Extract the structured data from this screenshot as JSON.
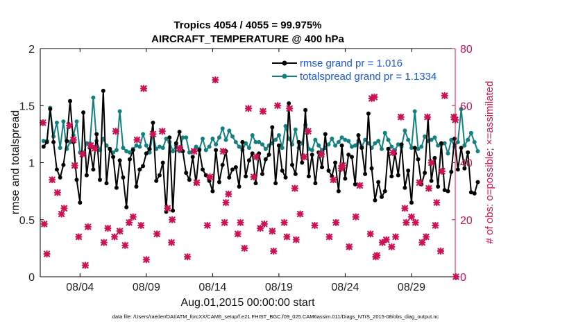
{
  "chart_data": {
    "type": "line",
    "title": "Tropics 4054 / 4055 = 99.975%",
    "subtitle": "AIRCRAFT_TEMPERATURE @ 400 hPa",
    "xlabel": "Aug.01,2015 00:00:00 start",
    "ylabel": "rmse and totalspread",
    "y2label": "# of obs: o=possible; ×=assimilated",
    "footer": "data file: /Users/raeder/DAI/ATM_forcXX/CAM6_setup/f.e21.FHIST_BGC.f09_025.CAM6assim.011/Diags_NTrS_2015-08/obs_diag_output.nc",
    "xlim": [
      1,
      32.3
    ],
    "ylim": [
      0,
      2
    ],
    "y2lim": [
      0,
      80
    ],
    "xticks": [
      4,
      9,
      14,
      19,
      24,
      29
    ],
    "xtick_labels": [
      "08/04",
      "08/09",
      "08/14",
      "08/19",
      "08/24",
      "08/29"
    ],
    "yticks": [
      0,
      0.5,
      1,
      1.5,
      2
    ],
    "ytick_labels": [
      "0",
      "0.5",
      "1",
      "1.5",
      "2"
    ],
    "y2ticks": [
      0,
      20,
      40,
      60,
      80
    ],
    "y2tick_labels": [
      "0",
      "20",
      "40",
      "60",
      "80"
    ],
    "x_start": 1.25,
    "x_step": 0.25,
    "legend_position": "top-right",
    "series": [
      {
        "name": "rmse grand pr = 1.016",
        "axis": "left",
        "color": "#000000",
        "marker": "dot",
        "values": [
          1.14,
          1.18,
          1.47,
          1.18,
          0.94,
          0.87,
          0.98,
          1.19,
          1.54,
          1.18,
          0.85,
          0.65,
          1.44,
          0.89,
          1.13,
          0.94,
          1.25,
          0.85,
          1.63,
          0.82,
          1.12,
          1.05,
          0.78,
          1.02,
          0.87,
          0.61,
          1.03,
          1.11,
          0.79,
          0.94,
          0.97,
          1.08,
          1.12,
          1.35,
          0.84,
          0.89,
          1.0,
          0.57,
          1.22,
          0.58,
          1.17,
          1.27,
          1.1,
          0.91,
          0.85,
          1.05,
          0.82,
          1.11,
          0.94,
          0.89,
          0.84,
          0.75,
          1.11,
          0.83,
          0.98,
          1.1,
          0.87,
          0.94,
          0.96,
          0.79,
          1.18,
          0.88,
          1.02,
          1.08,
          0.82,
          1.08,
          0.9,
          1.03,
          1.07,
          1.31,
          0.82,
          1.15,
          0.93,
          0.87,
          1.52,
          0.98,
          0.9,
          1.18,
          1.0,
          1.46,
          0.88,
          1.07,
          0.82,
          1.09,
          0.96,
          1.25,
          0.93,
          0.88,
          1.0,
          0.75,
          1.15,
          0.86,
          1.07,
          1.05,
          0.81,
          1.24,
          1.13,
          0.9,
          1.43,
          0.95,
          0.67,
          0.83,
          0.7,
          0.75,
          1.12,
          0.88,
          1.08,
          0.89,
          1.16,
          0.78,
          0.93,
          0.65,
          1.13,
          1.03,
          0.81,
          0.91,
          1.39,
          0.84,
          1.04,
          0.79,
          1.17,
          0.76,
          0.75,
          0.92,
          1.21,
          0.94,
          1.13,
          0.95,
          1.09,
          0.74,
          0.73,
          0.83
        ]
      },
      {
        "name": "totalspread grand pr = 1.1334",
        "axis": "left",
        "color": "#138080",
        "marker": "dot",
        "values": [
          1.19,
          1.19,
          1.48,
          1.23,
          1.35,
          1.13,
          1.36,
          1.12,
          1.18,
          1.24,
          1.36,
          1.09,
          1.08,
          1.17,
          1.17,
          1.57,
          1.19,
          1.11,
          1.21,
          1.15,
          1.12,
          1.09,
          1.11,
          1.45,
          1.13,
          1.1,
          1.09,
          1.12,
          1.15,
          1.14,
          1.25,
          1.15,
          1.09,
          1.25,
          1.12,
          1.14,
          1.13,
          1.21,
          1.18,
          1.1,
          1.15,
          1.1,
          1.22,
          1.22,
          1.09,
          1.1,
          1.14,
          1.12,
          1.21,
          1.11,
          1.14,
          1.21,
          1.16,
          1.22,
          1.3,
          1.2,
          1.28,
          1.23,
          1.18,
          1.14,
          1.11,
          1.17,
          1.13,
          1.24,
          1.18,
          1.18,
          1.16,
          1.12,
          1.15,
          1.17,
          1.2,
          1.24,
          1.13,
          1.32,
          1.21,
          1.16,
          1.29,
          1.13,
          1.17,
          1.33,
          1.12,
          1.11,
          1.2,
          1.15,
          1.11,
          1.13,
          1.16,
          1.21,
          1.15,
          1.18,
          1.22,
          1.2,
          1.19,
          1.14,
          1.15,
          1.19,
          1.14,
          1.2,
          1.17,
          1.13,
          1.17,
          1.19,
          1.12,
          1.26,
          1.2,
          1.14,
          1.11,
          1.16,
          1.14,
          1.28,
          1.2,
          1.13,
          1.45,
          1.12,
          1.14,
          1.23,
          1.19,
          1.2,
          1.22,
          1.15,
          1.16,
          1.17,
          1.08,
          1.2,
          1.14,
          1.18,
          1.47,
          1.15,
          1.2,
          1.26,
          1.18,
          1.1
        ]
      },
      {
        "name": "# of obs assimilated",
        "axis": "right",
        "color": "#cc1155",
        "marker": "x",
        "points": [
          [
            1.2,
            54
          ],
          [
            1.3,
            18.5
          ],
          [
            1.5,
            8
          ],
          [
            1.9,
            34
          ],
          [
            2.3,
            29.5
          ],
          [
            2.6,
            22
          ],
          [
            2.8,
            24
          ],
          [
            3.2,
            53
          ],
          [
            3.5,
            48
          ],
          [
            3.6,
            39
          ],
          [
            3.9,
            14
          ],
          [
            4.2,
            43
          ],
          [
            4.4,
            4
          ],
          [
            4.6,
            17.5
          ],
          [
            4.8,
            46
          ],
          [
            5.1,
            45
          ],
          [
            5.8,
            12
          ],
          [
            6.1,
            17
          ],
          [
            6.6,
            14
          ],
          [
            6.7,
            51
          ],
          [
            7.0,
            16
          ],
          [
            7.4,
            11
          ],
          [
            7.7,
            19
          ],
          [
            8.0,
            21
          ],
          [
            8.3,
            48
          ],
          [
            8.6,
            18
          ],
          [
            8.8,
            66
          ],
          [
            9.0,
            6
          ],
          [
            9.5,
            50
          ],
          [
            9.8,
            15
          ],
          [
            10.2,
            51
          ],
          [
            10.6,
            24
          ],
          [
            10.9,
            12
          ],
          [
            10.95,
            20
          ],
          [
            11.5,
            45
          ],
          [
            12.1,
            7
          ],
          [
            12.6,
            44
          ],
          [
            12.8,
            33
          ],
          [
            13.6,
            18
          ],
          [
            13.8,
            35
          ],
          [
            14.2,
            69
          ],
          [
            14.8,
            44
          ],
          [
            14.9,
            19
          ],
          [
            15.0,
            26
          ],
          [
            15.2,
            29
          ],
          [
            15.9,
            15
          ],
          [
            16.1,
            19
          ],
          [
            16.4,
            10
          ],
          [
            16.7,
            59
          ],
          [
            17.1,
            35
          ],
          [
            17.3,
            42
          ],
          [
            17.6,
            17
          ],
          [
            17.8,
            58
          ],
          [
            17.9,
            18.5
          ],
          [
            18.5,
            16
          ],
          [
            18.6,
            9
          ],
          [
            18.9,
            60
          ],
          [
            19.4,
            19
          ],
          [
            19.6,
            14
          ],
          [
            19.8,
            59
          ],
          [
            20.2,
            31
          ],
          [
            20.3,
            13
          ],
          [
            20.6,
            22
          ],
          [
            20.9,
            42
          ],
          [
            21.2,
            51
          ],
          [
            21.7,
            18
          ],
          [
            22.2,
            43
          ],
          [
            22.8,
            14
          ],
          [
            23.1,
            34
          ],
          [
            23.3,
            19
          ],
          [
            23.7,
            38
          ],
          [
            23.8,
            39
          ],
          [
            24.3,
            10.5
          ],
          [
            24.8,
            21
          ],
          [
            25.1,
            32
          ],
          [
            25.9,
            15
          ],
          [
            26.0,
            62.5
          ],
          [
            26.2,
            63
          ],
          [
            26.3,
            7
          ],
          [
            26.4,
            7.5
          ],
          [
            26.8,
            12
          ],
          [
            27.1,
            13
          ],
          [
            27.5,
            10.5
          ],
          [
            27.6,
            43.5
          ],
          [
            27.8,
            14
          ],
          [
            28.2,
            56
          ],
          [
            28.5,
            24
          ],
          [
            28.6,
            19
          ],
          [
            29.0,
            21
          ],
          [
            29.3,
            19
          ],
          [
            29.6,
            33
          ],
          [
            29.8,
            12
          ],
          [
            30.1,
            14
          ],
          [
            30.2,
            56
          ],
          [
            30.3,
            31
          ],
          [
            30.5,
            40
          ],
          [
            30.8,
            18
          ],
          [
            30.9,
            26
          ],
          [
            31.2,
            9
          ],
          [
            31.3,
            37
          ],
          [
            31.5,
            63.5
          ],
          [
            32.2,
            56
          ],
          [
            32.3,
            55
          ],
          [
            32.35,
            0
          ]
        ]
      }
    ]
  }
}
